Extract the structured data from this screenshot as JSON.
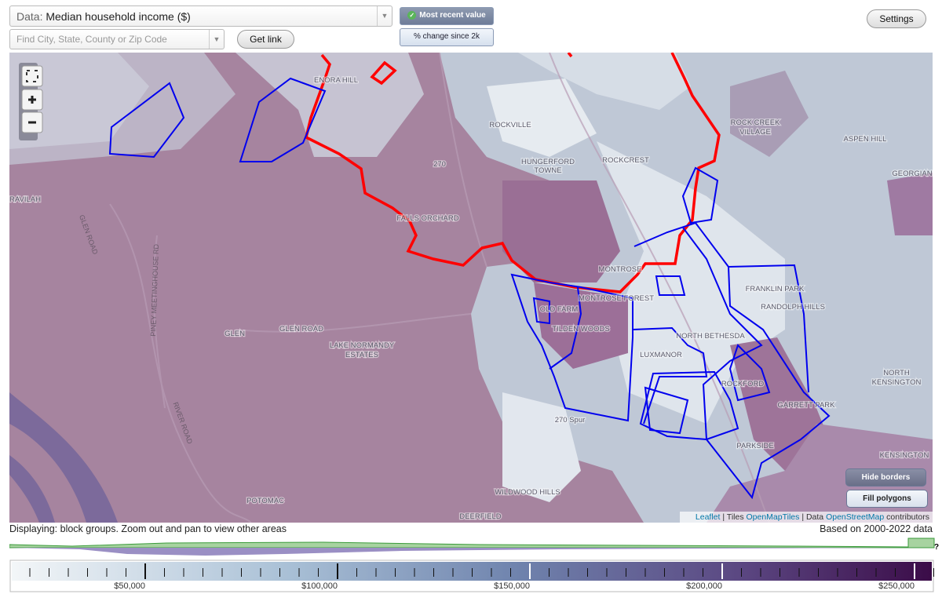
{
  "top_bar": {
    "data_label": "Data:",
    "data_value": "Median household income ($)",
    "search_placeholder": "Find City, State, County or Zip Code",
    "get_link": "Get link",
    "mode_recent": "Most recent value",
    "mode_change": "% change since 2k",
    "settings": "Settings"
  },
  "map": {
    "labels": [
      "ENORA HILL",
      "ROCKVILLE",
      "HUNGERFORD",
      "TOWNE",
      "ROCKCREST",
      "ROCK CREEK",
      "VILLAGE",
      "ASPEN HILL",
      "GEORGIAN",
      "RAVILAH",
      "270",
      "FALLS ORCHARD",
      "MONTROSE",
      "FRANKLIN PARK",
      "RANDOLPH HILLS",
      "MONTROSE FOREST",
      "OLD FARM",
      "TILDEN WOODS",
      "NORTH BETHESDA",
      "LUXMANOR",
      "GLEN",
      "GLEN ROAD",
      "LAKE NORMANDY",
      "ESTATES",
      "NORTH",
      "KENSINGTON",
      "GARRETT PARK",
      "PARKSIDE",
      "KENSINGTON",
      "270 Spur",
      "POTOMAC",
      "WILDWOOD HILLS",
      "DEERFIELD",
      "ROCKFORD"
    ],
    "rotated_labels": [
      "GLEN ROAD",
      "PINEY MEETINGHOUSE RD",
      "RIVER ROAD"
    ],
    "hide_borders": "Hide borders",
    "fill_polygons": "Fill polygons",
    "attribution": {
      "leaflet": "Leaflet",
      "tiles_prefix": "Tiles",
      "tiles": "OpenMapTiles",
      "data_prefix": "Data",
      "data": "OpenStreetMap",
      "suffix": "contributors"
    }
  },
  "footer": {
    "displaying": "Displaying: block groups. Zoom out and pan to view other areas",
    "based_on": "Based on 2000-2022 data",
    "help": "?"
  },
  "legend": {
    "ticks": [
      "$50,000",
      "$100,000",
      "$150,000",
      "$200,000",
      "$250,000"
    ]
  }
}
